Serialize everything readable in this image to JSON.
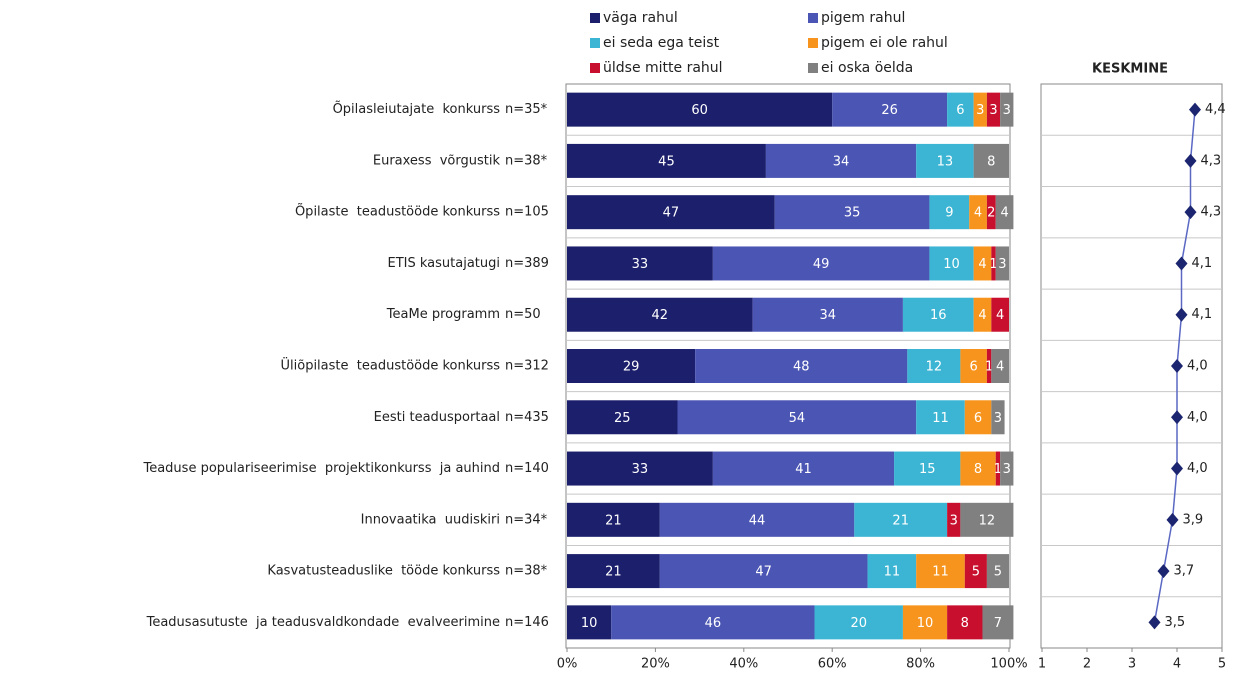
{
  "chart_data": [
    {
      "type": "bar",
      "orientation": "horizontal",
      "stacked": true,
      "categories": [
        "Õpilasleiutajate  konkurss",
        "Euraxess  võrgustik",
        "Õpilaste  teadustööde konkurss",
        "ETIS kasutajatugi",
        "TeaMe programm",
        "Üliõpilaste  teadustööde konkurss",
        "Eesti teadusportaal",
        "Teaduse populariseerimise  projektikonkurss  ja auhind",
        "Innovaatika  uudiskiri",
        "Kasvatusteaduslike  tööde konkurss",
        "Teadusasutuste  ja teadusvaldkondade  evalveerimine"
      ],
      "n_labels": [
        "n=35*",
        "n=38*",
        "n=105",
        "n=389",
        "n=50",
        "n=312",
        "n=435",
        "n=140",
        "n=34*",
        "n=38*",
        "n=146"
      ],
      "series": [
        {
          "name": "väga rahul",
          "color": "#1c1f6b",
          "values": [
            60,
            45,
            47,
            33,
            42,
            29,
            25,
            33,
            21,
            21,
            10
          ]
        },
        {
          "name": "pigem rahul",
          "color": "#4b55b3",
          "values": [
            26,
            34,
            35,
            49,
            34,
            48,
            54,
            41,
            44,
            47,
            46
          ]
        },
        {
          "name": "ei seda ega teist",
          "color": "#3bb5d3",
          "values": [
            6,
            13,
            9,
            10,
            16,
            12,
            11,
            15,
            21,
            11,
            20
          ]
        },
        {
          "name": "pigem ei ole rahul",
          "color": "#f7941d",
          "values": [
            3,
            null,
            4,
            4,
            4,
            6,
            6,
            8,
            null,
            11,
            10
          ]
        },
        {
          "name": "üldse mitte rahul",
          "color": "#c8102e",
          "values": [
            3,
            null,
            2,
            1,
            4,
            1,
            null,
            1,
            3,
            5,
            8
          ]
        },
        {
          "name": "ei oska öelda",
          "color": "#808080",
          "values": [
            3,
            8,
            4,
            3,
            null,
            4,
            3,
            3,
            12,
            5,
            7
          ]
        }
      ],
      "xlim": [
        0,
        100
      ],
      "xticks": [
        {
          "value": 0,
          "label": "0%"
        },
        {
          "value": 20,
          "label": "20%"
        },
        {
          "value": 40,
          "label": "40%"
        },
        {
          "value": 60,
          "label": "60%"
        },
        {
          "value": 80,
          "label": "80%"
        },
        {
          "value": 100,
          "label": "100%"
        }
      ]
    },
    {
      "type": "line",
      "title": "KESKMINE",
      "color": "#1c2670",
      "values": [
        4.4,
        4.3,
        4.3,
        4.1,
        4.1,
        4.0,
        4.0,
        4.0,
        3.9,
        3.7,
        3.5
      ],
      "value_labels": [
        "4,4",
        "4,3",
        "4,3",
        "4,1",
        "4,1",
        "4,0",
        "4,0",
        "4,0",
        "3,9",
        "3,7",
        "3,5"
      ],
      "xlim": [
        1,
        5
      ],
      "xticks": [
        1,
        2,
        3,
        4,
        5
      ]
    }
  ]
}
